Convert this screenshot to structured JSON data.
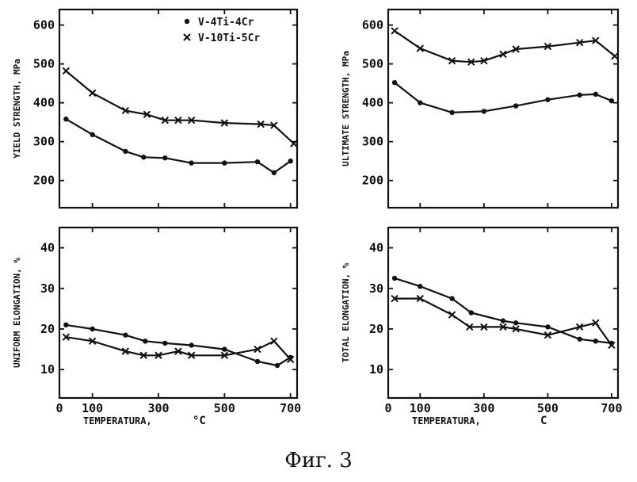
{
  "caption": "Фиг. 3",
  "colors": {
    "ink": "#111111",
    "background": "#ffffff"
  },
  "legend": {
    "position": "top-right of top-left panel",
    "entries": [
      {
        "marker": "dot",
        "label": "V-4Ti-4Cr"
      },
      {
        "marker": "cross",
        "label": "V-10Ti-5Cr"
      }
    ]
  },
  "chart_data": [
    {
      "type": "line",
      "panel": "top-left",
      "ylabel": "YIELD STRENGTH, MPa",
      "xlabel": "",
      "xlim": [
        0,
        720
      ],
      "ylim": [
        130,
        640
      ],
      "xticks": [
        0,
        100,
        300,
        500,
        700
      ],
      "yticks": [
        200,
        300,
        400,
        500,
        600
      ],
      "series": [
        {
          "name": "V-4Ti-4Cr",
          "marker": "dot",
          "x": [
            20,
            100,
            200,
            255,
            320,
            400,
            500,
            600,
            650,
            700
          ],
          "values": [
            358,
            318,
            275,
            260,
            258,
            245,
            245,
            248,
            220,
            250
          ]
        },
        {
          "name": "V-10Ti-5Cr",
          "marker": "cross",
          "x": [
            20,
            100,
            200,
            265,
            320,
            360,
            400,
            500,
            610,
            650,
            710
          ],
          "values": [
            482,
            425,
            380,
            370,
            355,
            355,
            355,
            348,
            345,
            342,
            295
          ]
        }
      ]
    },
    {
      "type": "line",
      "panel": "top-right",
      "ylabel": "ULTIMATE STRENGTH, MPa",
      "xlabel": "",
      "xlim": [
        0,
        720
      ],
      "ylim": [
        130,
        640
      ],
      "xticks": [
        0,
        100,
        300,
        500,
        700
      ],
      "yticks": [
        200,
        300,
        400,
        500,
        600
      ],
      "series": [
        {
          "name": "V-4Ti-4Cr",
          "marker": "dot",
          "x": [
            20,
            100,
            200,
            300,
            400,
            500,
            600,
            650,
            700
          ],
          "values": [
            452,
            400,
            375,
            378,
            392,
            408,
            420,
            422,
            405
          ]
        },
        {
          "name": "V-10Ti-5Cr",
          "marker": "cross",
          "x": [
            20,
            100,
            200,
            260,
            300,
            360,
            400,
            500,
            600,
            650,
            710
          ],
          "values": [
            585,
            540,
            508,
            505,
            508,
            525,
            538,
            545,
            555,
            560,
            520
          ]
        }
      ]
    },
    {
      "type": "line",
      "panel": "bottom-left",
      "ylabel": "UNIFORM ELONGATION, %",
      "xlabel": "TEMPERATURA,",
      "xunit": "°C",
      "xlim": [
        0,
        720
      ],
      "ylim": [
        3,
        45
      ],
      "xticks": [
        0,
        100,
        300,
        500,
        700
      ],
      "yticks": [
        10,
        20,
        30,
        40
      ],
      "series": [
        {
          "name": "V-4Ti-4Cr",
          "marker": "dot",
          "x": [
            20,
            100,
            200,
            260,
            320,
            400,
            500,
            600,
            660,
            700
          ],
          "values": [
            21,
            20,
            18.5,
            17,
            16.5,
            16,
            15,
            12,
            11,
            13
          ]
        },
        {
          "name": "V-10Ti-5Cr",
          "marker": "cross",
          "x": [
            20,
            100,
            200,
            255,
            300,
            360,
            400,
            500,
            600,
            650,
            700
          ],
          "values": [
            18,
            17,
            14.5,
            13.5,
            13.5,
            14.5,
            13.5,
            13.5,
            15,
            17,
            12.5
          ]
        }
      ]
    },
    {
      "type": "line",
      "panel": "bottom-right",
      "ylabel": "TOTAL ELONGATION, %",
      "xlabel": "TEMPERATURA,",
      "xunit": "C",
      "xlim": [
        0,
        720
      ],
      "ylim": [
        3,
        45
      ],
      "xticks": [
        0,
        100,
        300,
        500,
        700
      ],
      "yticks": [
        10,
        20,
        30,
        40
      ],
      "series": [
        {
          "name": "V-4Ti-4Cr",
          "marker": "dot",
          "x": [
            20,
            100,
            200,
            260,
            360,
            400,
            500,
            600,
            650,
            700
          ],
          "values": [
            32.5,
            30.5,
            27.5,
            24,
            22,
            21.5,
            20.5,
            17.5,
            17,
            16.5
          ]
        },
        {
          "name": "V-10Ti-5Cr",
          "marker": "cross",
          "x": [
            20,
            100,
            200,
            255,
            300,
            360,
            400,
            500,
            600,
            650,
            700
          ],
          "values": [
            27.5,
            27.5,
            23.5,
            20.5,
            20.5,
            20.5,
            20,
            18.5,
            20.5,
            21.5,
            16
          ]
        }
      ]
    }
  ]
}
